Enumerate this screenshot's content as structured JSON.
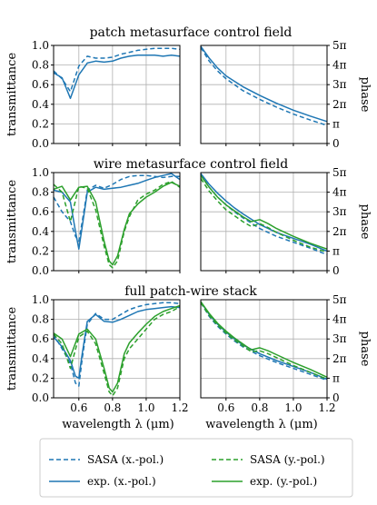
{
  "figure": {
    "xlabel": "wavelength λ (μm)",
    "left_ylabel": "transmittance",
    "right_ylabel": "phase"
  },
  "chart_data": [
    {
      "type": "line",
      "title": "patch metasurface control field",
      "panel": "transmittance",
      "xlim": [
        0.45,
        1.2
      ],
      "ylim": [
        0,
        1
      ],
      "xticks": [
        0.6,
        0.8,
        1.0,
        1.2
      ],
      "yticks": [
        0,
        0.2,
        0.4,
        0.6,
        0.8,
        1.0
      ],
      "grid": true,
      "series": [
        {
          "name": "SASA (x.-pol.)",
          "color": "#1f77b4",
          "dash": true,
          "x": [
            0.45,
            0.5,
            0.55,
            0.6,
            0.65,
            0.7,
            0.75,
            0.8,
            0.85,
            0.9,
            0.95,
            1.0,
            1.05,
            1.1,
            1.15,
            1.2
          ],
          "y": [
            0.74,
            0.66,
            0.53,
            0.79,
            0.89,
            0.87,
            0.87,
            0.88,
            0.91,
            0.93,
            0.95,
            0.96,
            0.97,
            0.97,
            0.97,
            0.96
          ]
        },
        {
          "name": "exp. (x.-pol.)",
          "color": "#1f77b4",
          "dash": false,
          "x": [
            0.45,
            0.5,
            0.55,
            0.6,
            0.65,
            0.7,
            0.75,
            0.8,
            0.85,
            0.9,
            0.95,
            1.0,
            1.05,
            1.1,
            1.15,
            1.2
          ],
          "y": [
            0.72,
            0.67,
            0.46,
            0.7,
            0.82,
            0.84,
            0.83,
            0.84,
            0.87,
            0.89,
            0.9,
            0.9,
            0.9,
            0.89,
            0.9,
            0.89
          ]
        }
      ]
    },
    {
      "type": "line",
      "title": "",
      "panel": "phase",
      "xlim": [
        0.45,
        1.2
      ],
      "ylim": [
        0,
        5
      ],
      "ylim_unit": "π",
      "xticks": [
        0.6,
        0.8,
        1.0,
        1.2
      ],
      "yticks": [
        "0",
        "π",
        "2π",
        "3π",
        "4π",
        "5π"
      ],
      "grid": true,
      "series": [
        {
          "name": "SASA (x.-pol.)",
          "color": "#1f77b4",
          "dash": true,
          "x": [
            0.45,
            0.5,
            0.55,
            0.6,
            0.7,
            0.8,
            0.9,
            1.0,
            1.1,
            1.2
          ],
          "y": [
            4.9,
            4.2,
            3.7,
            3.3,
            2.7,
            2.25,
            1.85,
            1.5,
            1.2,
            0.92
          ]
        },
        {
          "name": "exp. (x.-pol.)",
          "color": "#1f77b4",
          "dash": false,
          "x": [
            0.45,
            0.5,
            0.55,
            0.6,
            0.7,
            0.8,
            0.9,
            1.0,
            1.1,
            1.2
          ],
          "y": [
            4.95,
            4.35,
            3.85,
            3.45,
            2.9,
            2.45,
            2.05,
            1.7,
            1.4,
            1.12
          ]
        }
      ]
    },
    {
      "type": "line",
      "title": "wire metasurface control field",
      "panel": "transmittance",
      "xlim": [
        0.45,
        1.2
      ],
      "ylim": [
        0,
        1
      ],
      "xticks": [
        0.6,
        0.8,
        1.0,
        1.2
      ],
      "yticks": [
        0,
        0.2,
        0.4,
        0.6,
        0.8,
        1.0
      ],
      "grid": true,
      "series": [
        {
          "name": "SASA (x.-pol.)",
          "color": "#1f77b4",
          "dash": true,
          "x": [
            0.45,
            0.5,
            0.55,
            0.58,
            0.6,
            0.62,
            0.65,
            0.7,
            0.75,
            0.8,
            0.85,
            0.9,
            0.95,
            1.0,
            1.05,
            1.1,
            1.15,
            1.2
          ],
          "y": [
            0.75,
            0.6,
            0.5,
            0.35,
            0.3,
            0.5,
            0.82,
            0.87,
            0.84,
            0.88,
            0.93,
            0.96,
            0.97,
            0.97,
            0.96,
            0.95,
            0.96,
            0.96
          ]
        },
        {
          "name": "exp. (x.-pol.)",
          "color": "#1f77b4",
          "dash": false,
          "x": [
            0.45,
            0.5,
            0.55,
            0.58,
            0.6,
            0.62,
            0.65,
            0.7,
            0.75,
            0.8,
            0.85,
            0.9,
            0.95,
            1.0,
            1.05,
            1.1,
            1.15,
            1.2
          ],
          "y": [
            0.82,
            0.8,
            0.7,
            0.4,
            0.22,
            0.45,
            0.8,
            0.85,
            0.83,
            0.84,
            0.85,
            0.87,
            0.89,
            0.92,
            0.95,
            0.97,
            0.99,
            0.93
          ]
        },
        {
          "name": "SASA (y.-pol.)",
          "color": "#2ca02c",
          "dash": true,
          "x": [
            0.45,
            0.5,
            0.55,
            0.6,
            0.65,
            0.7,
            0.75,
            0.78,
            0.8,
            0.83,
            0.87,
            0.9,
            0.95,
            1.0,
            1.05,
            1.1,
            1.15,
            1.2
          ],
          "y": [
            0.88,
            0.8,
            0.5,
            0.86,
            0.84,
            0.62,
            0.25,
            0.06,
            0.03,
            0.1,
            0.4,
            0.55,
            0.72,
            0.78,
            0.82,
            0.88,
            0.91,
            0.85
          ]
        },
        {
          "name": "exp. (y.-pol.)",
          "color": "#2ca02c",
          "dash": false,
          "x": [
            0.45,
            0.5,
            0.55,
            0.6,
            0.65,
            0.7,
            0.75,
            0.78,
            0.8,
            0.83,
            0.87,
            0.9,
            0.95,
            1.0,
            1.05,
            1.1,
            1.15,
            1.2
          ],
          "y": [
            0.83,
            0.86,
            0.72,
            0.85,
            0.86,
            0.7,
            0.3,
            0.1,
            0.06,
            0.15,
            0.42,
            0.58,
            0.68,
            0.75,
            0.8,
            0.86,
            0.9,
            0.86
          ]
        }
      ]
    },
    {
      "type": "line",
      "title": "",
      "panel": "phase",
      "xlim": [
        0.45,
        1.2
      ],
      "ylim": [
        0,
        5
      ],
      "ylim_unit": "π",
      "xticks": [
        0.6,
        0.8,
        1.0,
        1.2
      ],
      "yticks": [
        "0",
        "π",
        "2π",
        "3π",
        "4π",
        "5π"
      ],
      "grid": true,
      "series": [
        {
          "name": "SASA (x.-pol.)",
          "color": "#1f77b4",
          "dash": true,
          "x": [
            0.45,
            0.5,
            0.55,
            0.6,
            0.65,
            0.7,
            0.8,
            0.9,
            1.0,
            1.1,
            1.2
          ],
          "y": [
            4.9,
            4.25,
            3.75,
            3.35,
            3.0,
            2.7,
            2.15,
            1.75,
            1.45,
            1.15,
            0.82
          ]
        },
        {
          "name": "exp. (x.-pol.)",
          "color": "#1f77b4",
          "dash": false,
          "x": [
            0.45,
            0.5,
            0.55,
            0.6,
            0.65,
            0.7,
            0.8,
            0.9,
            1.0,
            1.1,
            1.2
          ],
          "y": [
            4.95,
            4.4,
            3.95,
            3.55,
            3.2,
            2.9,
            2.35,
            1.95,
            1.65,
            1.35,
            1.0
          ]
        },
        {
          "name": "SASA (y.-pol.)",
          "color": "#2ca02c",
          "dash": true,
          "x": [
            0.45,
            0.5,
            0.55,
            0.6,
            0.65,
            0.7,
            0.75,
            0.8,
            0.85,
            0.9,
            1.0,
            1.1,
            1.2
          ],
          "y": [
            4.7,
            4.05,
            3.55,
            3.1,
            2.8,
            2.5,
            2.25,
            2.4,
            2.2,
            1.95,
            1.55,
            1.2,
            0.95
          ]
        },
        {
          "name": "exp. (y.-pol.)",
          "color": "#2ca02c",
          "dash": false,
          "x": [
            0.45,
            0.5,
            0.55,
            0.6,
            0.65,
            0.7,
            0.75,
            0.8,
            0.85,
            0.9,
            1.0,
            1.1,
            1.2
          ],
          "y": [
            4.85,
            4.25,
            3.75,
            3.35,
            3.05,
            2.75,
            2.5,
            2.6,
            2.4,
            2.15,
            1.75,
            1.4,
            1.1
          ]
        }
      ]
    },
    {
      "type": "line",
      "title": "full patch-wire stack",
      "panel": "transmittance",
      "xlim": [
        0.45,
        1.2
      ],
      "ylim": [
        0,
        1
      ],
      "xticks": [
        0.6,
        0.8,
        1.0,
        1.2
      ],
      "yticks": [
        0,
        0.2,
        0.4,
        0.6,
        0.8,
        1.0
      ],
      "grid": true,
      "series": [
        {
          "name": "SASA (x.-pol.)",
          "color": "#1f77b4",
          "dash": true,
          "x": [
            0.45,
            0.5,
            0.55,
            0.58,
            0.6,
            0.62,
            0.65,
            0.7,
            0.75,
            0.8,
            0.85,
            0.9,
            0.95,
            1.0,
            1.05,
            1.1,
            1.15,
            1.2
          ],
          "y": [
            0.65,
            0.5,
            0.35,
            0.15,
            0.12,
            0.4,
            0.75,
            0.86,
            0.8,
            0.8,
            0.85,
            0.9,
            0.93,
            0.95,
            0.96,
            0.97,
            0.97,
            0.96
          ]
        },
        {
          "name": "exp. (x.-pol.)",
          "color": "#1f77b4",
          "dash": false,
          "x": [
            0.45,
            0.5,
            0.55,
            0.58,
            0.6,
            0.62,
            0.65,
            0.7,
            0.75,
            0.8,
            0.85,
            0.9,
            0.95,
            1.0,
            1.05,
            1.1,
            1.15,
            1.2
          ],
          "y": [
            0.62,
            0.52,
            0.38,
            0.22,
            0.2,
            0.45,
            0.78,
            0.85,
            0.78,
            0.77,
            0.8,
            0.84,
            0.88,
            0.9,
            0.91,
            0.92,
            0.93,
            0.92
          ]
        },
        {
          "name": "SASA (y.-pol.)",
          "color": "#2ca02c",
          "dash": true,
          "x": [
            0.45,
            0.5,
            0.55,
            0.6,
            0.65,
            0.7,
            0.75,
            0.78,
            0.8,
            0.83,
            0.87,
            0.9,
            0.95,
            1.0,
            1.05,
            1.1,
            1.15,
            1.2
          ],
          "y": [
            0.65,
            0.55,
            0.3,
            0.62,
            0.68,
            0.55,
            0.25,
            0.06,
            0.02,
            0.1,
            0.4,
            0.5,
            0.6,
            0.7,
            0.8,
            0.85,
            0.88,
            0.93
          ]
        },
        {
          "name": "exp. (y.-pol.)",
          "color": "#2ca02c",
          "dash": false,
          "x": [
            0.45,
            0.5,
            0.55,
            0.6,
            0.65,
            0.7,
            0.75,
            0.78,
            0.8,
            0.83,
            0.87,
            0.9,
            0.95,
            1.0,
            1.05,
            1.1,
            1.15,
            1.2
          ],
          "y": [
            0.66,
            0.6,
            0.42,
            0.65,
            0.7,
            0.6,
            0.3,
            0.1,
            0.06,
            0.15,
            0.45,
            0.56,
            0.66,
            0.75,
            0.83,
            0.88,
            0.91,
            0.94
          ]
        }
      ]
    },
    {
      "type": "line",
      "title": "",
      "panel": "phase",
      "xlim": [
        0.45,
        1.2
      ],
      "ylim": [
        0,
        5
      ],
      "ylim_unit": "π",
      "xticks": [
        0.6,
        0.8,
        1.0,
        1.2
      ],
      "yticks": [
        "0",
        "π",
        "2π",
        "3π",
        "4π",
        "5π"
      ],
      "grid": true,
      "series": [
        {
          "name": "SASA (x.-pol.)",
          "color": "#1f77b4",
          "dash": true,
          "x": [
            0.45,
            0.5,
            0.55,
            0.6,
            0.65,
            0.7,
            0.8,
            0.9,
            1.0,
            1.1,
            1.2
          ],
          "y": [
            4.85,
            4.15,
            3.65,
            3.25,
            2.9,
            2.6,
            2.15,
            1.8,
            1.5,
            1.2,
            0.9
          ]
        },
        {
          "name": "exp. (x.-pol.)",
          "color": "#1f77b4",
          "dash": false,
          "x": [
            0.45,
            0.5,
            0.55,
            0.6,
            0.65,
            0.7,
            0.8,
            0.9,
            1.0,
            1.1,
            1.2
          ],
          "y": [
            4.9,
            4.25,
            3.75,
            3.35,
            3.0,
            2.7,
            2.25,
            1.9,
            1.6,
            1.3,
            0.95
          ]
        },
        {
          "name": "SASA (y.-pol.)",
          "color": "#2ca02c",
          "dash": true,
          "x": [
            0.45,
            0.5,
            0.55,
            0.6,
            0.65,
            0.7,
            0.75,
            0.8,
            0.85,
            0.9,
            1.0,
            1.1,
            1.2
          ],
          "y": [
            4.85,
            4.2,
            3.7,
            3.3,
            2.95,
            2.65,
            2.35,
            2.4,
            2.25,
            2.05,
            1.65,
            1.3,
            0.95
          ]
        },
        {
          "name": "exp. (y.-pol.)",
          "color": "#2ca02c",
          "dash": false,
          "x": [
            0.45,
            0.5,
            0.55,
            0.6,
            0.65,
            0.7,
            0.75,
            0.8,
            0.85,
            0.9,
            1.0,
            1.1,
            1.2
          ],
          "y": [
            4.9,
            4.3,
            3.8,
            3.4,
            3.05,
            2.75,
            2.45,
            2.55,
            2.4,
            2.2,
            1.8,
            1.45,
            1.05
          ]
        }
      ]
    }
  ],
  "legend": {
    "placement": "bottom",
    "items": [
      {
        "label": "SASA (x.-pol.)",
        "color": "#1f77b4",
        "dash": true
      },
      {
        "label": "SASA (y.-pol.)",
        "color": "#2ca02c",
        "dash": true
      },
      {
        "label": "exp. (x.-pol.)",
        "color": "#1f77b4",
        "dash": false
      },
      {
        "label": "exp. (y.-pol.)",
        "color": "#2ca02c",
        "dash": false
      }
    ]
  }
}
